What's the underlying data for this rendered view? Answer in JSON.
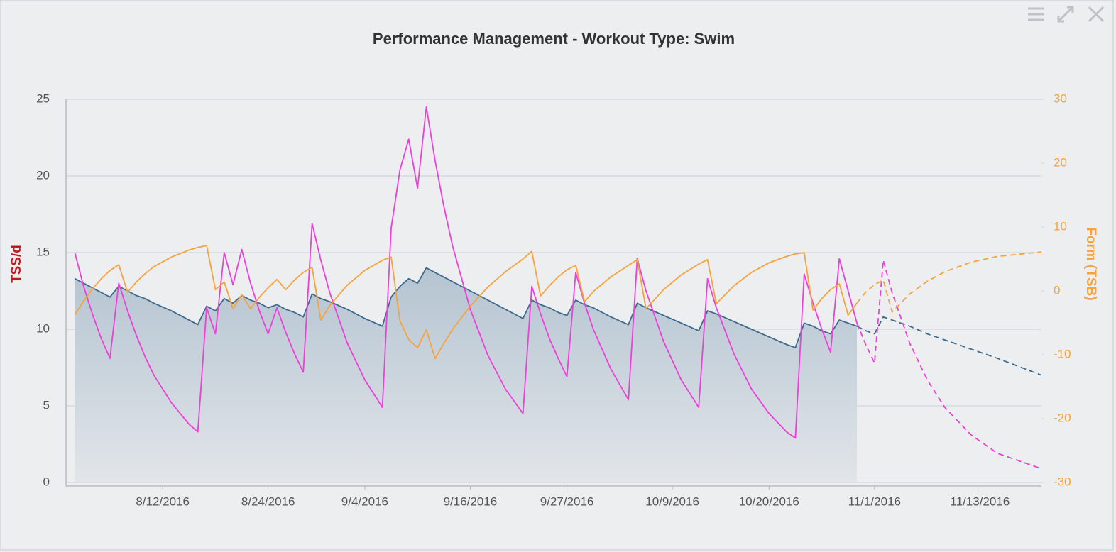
{
  "chart_data": {
    "type": "line",
    "title": "Performance Management - Workout Type: Swim",
    "y_label": "TSS/d",
    "y2_label": "Form (TSB)",
    "x": [
      "8/2/2016",
      "8/3/2016",
      "8/4/2016",
      "8/5/2016",
      "8/6/2016",
      "8/7/2016",
      "8/8/2016",
      "8/9/2016",
      "8/10/2016",
      "8/11/2016",
      "8/13/2016",
      "8/15/2016",
      "8/16/2016",
      "8/17/2016",
      "8/18/2016",
      "8/19/2016",
      "8/20/2016",
      "8/21/2016",
      "8/22/2016",
      "8/23/2016",
      "8/24/2016",
      "8/25/2016",
      "8/26/2016",
      "8/27/2016",
      "8/28/2016",
      "8/29/2016",
      "8/30/2016",
      "8/31/2016",
      "9/2/2016",
      "9/4/2016",
      "9/6/2016",
      "9/7/2016",
      "9/8/2016",
      "9/9/2016",
      "9/10/2016",
      "9/11/2016",
      "9/12/2016",
      "9/13/2016",
      "9/14/2016",
      "9/16/2016",
      "9/18/2016",
      "9/20/2016",
      "9/22/2016",
      "9/23/2016",
      "9/24/2016",
      "9/25/2016",
      "9/26/2016",
      "9/27/2016",
      "9/28/2016",
      "9/29/2016",
      "9/30/2016",
      "10/2/2016",
      "10/4/2016",
      "10/5/2016",
      "10/6/2016",
      "10/8/2016",
      "10/10/2016",
      "10/12/2016",
      "10/13/2016",
      "10/14/2016",
      "10/16/2016",
      "10/18/2016",
      "10/20/2016",
      "10/22/2016",
      "10/23/2016",
      "10/24/2016",
      "10/25/2016",
      "10/26/2016",
      "10/27/2016",
      "10/28/2016",
      "10/29/2016",
      "10/30/2016",
      "10/31/2016",
      "11/1/2016",
      "11/2/2016",
      "11/3/2016",
      "11/5/2016",
      "11/7/2016",
      "11/9/2016",
      "11/12/2016",
      "11/15/2016",
      "11/20/2016"
    ],
    "xlim": [
      "8/1/2016",
      "11/20/2016"
    ],
    "xticks": [
      "8/12/2016",
      "8/24/2016",
      "9/4/2016",
      "9/16/2016",
      "9/27/2016",
      "10/9/2016",
      "10/20/2016",
      "11/1/2016",
      "11/13/2016"
    ],
    "ylim": [
      0,
      25
    ],
    "yticks": [
      0,
      5,
      10,
      15,
      20,
      25
    ],
    "y2lim": [
      -30,
      30
    ],
    "y2ticks": [
      -30,
      -20,
      -10,
      0,
      10,
      20,
      30
    ],
    "grid": true,
    "series": [
      {
        "color": "#3d6a8d",
        "area": true,
        "dash": false,
        "values": [
          13.3,
          13.0,
          12.7,
          12.4,
          12.1,
          12.8,
          12.5,
          12.2,
          12.0,
          11.7,
          11.2,
          10.6,
          10.3,
          11.5,
          11.2,
          12.0,
          11.7,
          12.2,
          11.9,
          11.7,
          11.4,
          11.6,
          11.3,
          11.1,
          10.8,
          12.3,
          12.0,
          11.8,
          11.3,
          10.7,
          10.2,
          12.1,
          12.8,
          13.3,
          13.0,
          14.0,
          13.7,
          13.4,
          13.1,
          12.5,
          11.9,
          11.3,
          10.7,
          11.9,
          11.6,
          11.4,
          11.1,
          10.9,
          11.9,
          11.6,
          11.4,
          10.8,
          10.3,
          11.7,
          11.4,
          10.9,
          10.4,
          9.9,
          11.2,
          11.0,
          10.5,
          10.0,
          9.5,
          9.0,
          8.8,
          10.4,
          10.2,
          9.9,
          9.7,
          10.6,
          10.4,
          10.2,
          null,
          null,
          null,
          null,
          null,
          null,
          null,
          null,
          null,
          null
        ]
      },
      {
        "color": "#3d6a8d",
        "area": false,
        "dash": true,
        "values": [
          null,
          null,
          null,
          null,
          null,
          null,
          null,
          null,
          null,
          null,
          null,
          null,
          null,
          null,
          null,
          null,
          null,
          null,
          null,
          null,
          null,
          null,
          null,
          null,
          null,
          null,
          null,
          null,
          null,
          null,
          null,
          null,
          null,
          null,
          null,
          null,
          null,
          null,
          null,
          null,
          null,
          null,
          null,
          null,
          null,
          null,
          null,
          null,
          null,
          null,
          null,
          null,
          null,
          null,
          null,
          null,
          null,
          null,
          null,
          null,
          null,
          null,
          null,
          null,
          null,
          null,
          null,
          null,
          null,
          null,
          null,
          10.2,
          9.9,
          9.7,
          10.8,
          10.6,
          10.2,
          9.7,
          9.3,
          8.7,
          8.1,
          7.0
        ]
      },
      {
        "color": "#ee3fd8",
        "area": false,
        "dash": false,
        "values": [
          15.0,
          12.8,
          11.0,
          9.4,
          8.1,
          13.0,
          11.2,
          9.6,
          8.2,
          7.0,
          5.2,
          3.8,
          3.3,
          11.4,
          9.7,
          15.0,
          12.9,
          15.2,
          13.0,
          11.2,
          9.7,
          11.4,
          9.8,
          8.4,
          7.2,
          16.9,
          14.5,
          12.4,
          9.1,
          6.7,
          4.9,
          16.6,
          20.4,
          22.4,
          19.2,
          24.5,
          21.0,
          18.0,
          15.4,
          11.3,
          8.3,
          6.1,
          4.5,
          12.8,
          11.0,
          9.4,
          8.1,
          6.9,
          13.7,
          11.7,
          10.0,
          7.4,
          5.4,
          14.6,
          12.5,
          9.2,
          6.7,
          4.9,
          13.3,
          11.4,
          8.4,
          6.1,
          4.5,
          3.3,
          2.9,
          13.6,
          11.7,
          10.0,
          8.5,
          14.6,
          12.5,
          10.4,
          null,
          null,
          null,
          null,
          null,
          null,
          null,
          null,
          null,
          null
        ]
      },
      {
        "color": "#ee3fd8",
        "area": false,
        "dash": true,
        "values": [
          null,
          null,
          null,
          null,
          null,
          null,
          null,
          null,
          null,
          null,
          null,
          null,
          null,
          null,
          null,
          null,
          null,
          null,
          null,
          null,
          null,
          null,
          null,
          null,
          null,
          null,
          null,
          null,
          null,
          null,
          null,
          null,
          null,
          null,
          null,
          null,
          null,
          null,
          null,
          null,
          null,
          null,
          null,
          null,
          null,
          null,
          null,
          null,
          null,
          null,
          null,
          null,
          null,
          null,
          null,
          null,
          null,
          null,
          null,
          null,
          null,
          null,
          null,
          null,
          null,
          null,
          null,
          null,
          null,
          null,
          null,
          10.4,
          9.0,
          7.8,
          14.5,
          12.4,
          9.1,
          6.7,
          4.9,
          3.1,
          1.9,
          0.9
        ]
      },
      {
        "color": "#f7a23a",
        "axis": "y2",
        "area": false,
        "dash": false,
        "values": [
          -3.7,
          -1.6,
          0.3,
          1.9,
          3.2,
          4.1,
          -0.2,
          1.4,
          2.7,
          3.8,
          5.3,
          6.4,
          6.8,
          7.1,
          0.2,
          1.4,
          -2.8,
          -0.6,
          -2.8,
          -1.0,
          0.5,
          1.8,
          0.2,
          1.7,
          2.9,
          3.7,
          -4.6,
          -2.3,
          0.9,
          3.2,
          4.8,
          5.3,
          -4.7,
          -7.6,
          -8.9,
          -6.1,
          -10.6,
          -8.2,
          -6.0,
          -2.4,
          0.6,
          3.0,
          5.0,
          6.2,
          -0.8,
          0.8,
          2.2,
          3.3,
          4.0,
          -1.7,
          -0.1,
          2.2,
          4.0,
          4.9,
          -2.8,
          0.2,
          2.5,
          4.2,
          4.9,
          -2.0,
          0.8,
          2.9,
          4.4,
          5.4,
          5.8,
          6.0,
          -3.0,
          -1.2,
          0.2,
          1.1,
          -3.8,
          -1.9,
          null,
          null,
          null,
          null,
          null,
          null,
          null,
          null,
          null,
          null
        ]
      },
      {
        "color": "#f7a23a",
        "axis": "y2",
        "area": false,
        "dash": true,
        "values": [
          null,
          null,
          null,
          null,
          null,
          null,
          null,
          null,
          null,
          null,
          null,
          null,
          null,
          null,
          null,
          null,
          null,
          null,
          null,
          null,
          null,
          null,
          null,
          null,
          null,
          null,
          null,
          null,
          null,
          null,
          null,
          null,
          null,
          null,
          null,
          null,
          null,
          null,
          null,
          null,
          null,
          null,
          null,
          null,
          null,
          null,
          null,
          null,
          null,
          null,
          null,
          null,
          null,
          null,
          null,
          null,
          null,
          null,
          null,
          null,
          null,
          null,
          null,
          null,
          null,
          null,
          null,
          null,
          null,
          null,
          null,
          -1.9,
          -0.2,
          1.0,
          1.7,
          -3.3,
          -0.5,
          1.5,
          3.0,
          4.5,
          5.4,
          6.1
        ]
      }
    ]
  }
}
